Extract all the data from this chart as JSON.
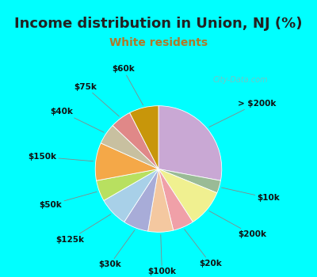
{
  "title": "Income distribution in Union, NJ (%)",
  "subtitle": "White residents",
  "outer_bg": "#00FFFF",
  "chart_bg": "#e0f5ec",
  "watermark": "City-Data.com",
  "slices": [
    {
      "label": "> $200k",
      "value": 26,
      "color": "#c9a8d4"
    },
    {
      "label": "$10k",
      "value": 3,
      "color": "#9abb96"
    },
    {
      "label": "$200k",
      "value": 9,
      "color": "#f0f090"
    },
    {
      "label": "$20k",
      "value": 5,
      "color": "#f0a0a8"
    },
    {
      "label": "$100k",
      "value": 6,
      "color": "#f4c8a0"
    },
    {
      "label": "$30k",
      "value": 6,
      "color": "#a8acd8"
    },
    {
      "label": "$125k",
      "value": 7,
      "color": "#a8d0e8"
    },
    {
      "label": "$50k",
      "value": 5,
      "color": "#b8e060"
    },
    {
      "label": "$150k",
      "value": 9,
      "color": "#f4a848"
    },
    {
      "label": "$40k",
      "value": 5,
      "color": "#c8c0a0"
    },
    {
      "label": "$75k",
      "value": 5,
      "color": "#e08888"
    },
    {
      "label": "$60k",
      "value": 7,
      "color": "#c8960a"
    }
  ],
  "label_fontsize": 7.5,
  "title_fontsize": 13,
  "subtitle_fontsize": 10,
  "title_color": "#222222",
  "subtitle_color": "#b07828"
}
